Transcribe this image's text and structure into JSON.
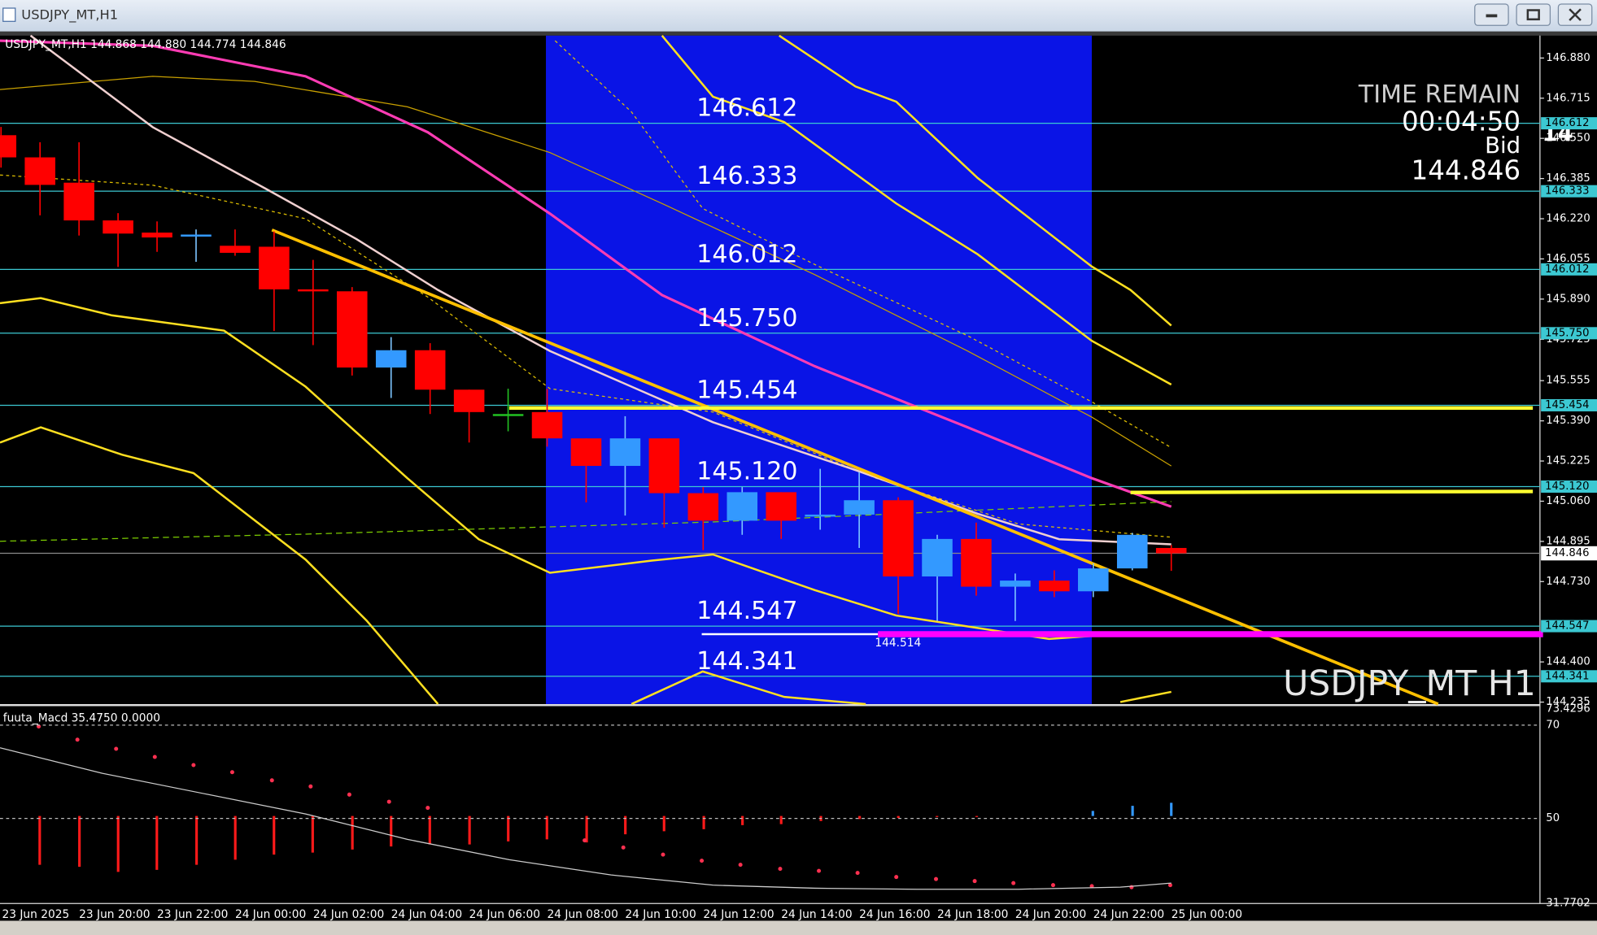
{
  "window": {
    "title": "USDJPY_MT,H1"
  },
  "chart_data": {
    "type": "candlestick",
    "header": "USDJPY_MT,H1  144.868 144.880 144.774 144.846",
    "categories": [
      "23 Jun 2025",
      null,
      "23 Jun 20:00",
      null,
      "23 Jun 22:00",
      null,
      "24 Jun 00:00",
      null,
      "24 Jun 02:00",
      null,
      "24 Jun 04:00",
      null,
      "24 Jun 06:00",
      null,
      "24 Jun 08:00",
      null,
      "24 Jun 10:00",
      null,
      "24 Jun 12:00",
      null,
      "24 Jun 14:00",
      null,
      "24 Jun 16:00",
      null,
      "24 Jun 18:00",
      null,
      "24 Jun 20:00",
      null,
      "24 Jun 22:00",
      null,
      "25 Jun 00:00"
    ],
    "open": [
      146.563,
      146.472,
      146.368,
      146.213,
      146.163,
      146.151,
      146.109,
      146.105,
      145.93,
      145.922,
      145.609,
      145.68,
      145.518,
      145.418,
      145.426,
      145.318,
      145.205,
      145.318,
      145.093,
      144.98,
      145.097,
      144.997,
      145.005,
      145.064,
      144.751,
      144.905,
      144.709,
      144.734,
      144.69,
      144.784,
      144.868
    ],
    "high": [
      146.597,
      146.534,
      146.534,
      146.243,
      146.209,
      146.176,
      146.176,
      146.168,
      146.051,
      145.939,
      145.734,
      145.709,
      145.518,
      145.522,
      145.522,
      145.318,
      145.409,
      145.318,
      145.118,
      145.118,
      145.097,
      145.193,
      145.18,
      145.076,
      144.922,
      144.972,
      144.763,
      144.776,
      144.805,
      144.93,
      144.88
    ],
    "low": [
      146.43,
      146.234,
      146.151,
      146.022,
      146.084,
      146.043,
      146.068,
      145.759,
      145.701,
      145.576,
      145.484,
      145.418,
      145.301,
      145.347,
      145.284,
      145.055,
      145.001,
      144.951,
      144.859,
      144.922,
      144.905,
      144.943,
      144.868,
      144.597,
      144.568,
      144.672,
      144.568,
      144.666,
      144.666,
      144.776,
      144.774
    ],
    "close": [
      146.472,
      146.359,
      146.213,
      146.159,
      146.143,
      146.155,
      146.08,
      145.93,
      145.922,
      145.609,
      145.68,
      145.518,
      145.426,
      145.418,
      145.318,
      145.205,
      145.318,
      145.093,
      144.98,
      145.097,
      144.98,
      145.005,
      145.064,
      144.751,
      144.905,
      144.709,
      144.734,
      144.69,
      144.784,
      144.922,
      144.846
    ],
    "up_color": "#3399ff",
    "down_color": "#ff0000",
    "doji_color": "#22c022",
    "ylim": [
      144.227,
      146.972
    ],
    "yticks": [
      {
        "value": 146.88,
        "label": "146.880"
      },
      146.715,
      {
        "value": 146.55,
        "label": "146.550"
      },
      146.385,
      {
        "value": 146.22,
        "label": "146.220"
      },
      146.055,
      {
        "value": 145.89,
        "label": "145.890"
      },
      145.725,
      145.555,
      {
        "value": 145.39,
        "label": "145.390"
      },
      145.225,
      {
        "value": 145.06,
        "label": "145.060"
      },
      144.895,
      {
        "value": 144.73,
        "label": "144.730"
      },
      {
        "value": 144.4,
        "label": "144.400"
      },
      144.235
    ],
    "levels": [
      146.612,
      146.333,
      146.012,
      {
        "value": 145.75,
        "label": "145.750"
      },
      145.454,
      {
        "value": 145.12,
        "label": "145.120"
      },
      144.547,
      144.341
    ],
    "level_color": "#3cc8d2",
    "bid": 144.846,
    "low_mark": 144.514,
    "watermark": "USDJPY_MT H1"
  },
  "timer": {
    "title": "TIME REMAIN",
    "time": "00:04:50",
    "bid_label": "Bid",
    "cut": "14"
  },
  "macd": {
    "label": "fuuta_Macd 35.4750   0.0000",
    "ylim": [
      31.7702,
      73.4296
    ],
    "yticks": [
      73.4296,
      70,
      50,
      31.7702
    ]
  }
}
